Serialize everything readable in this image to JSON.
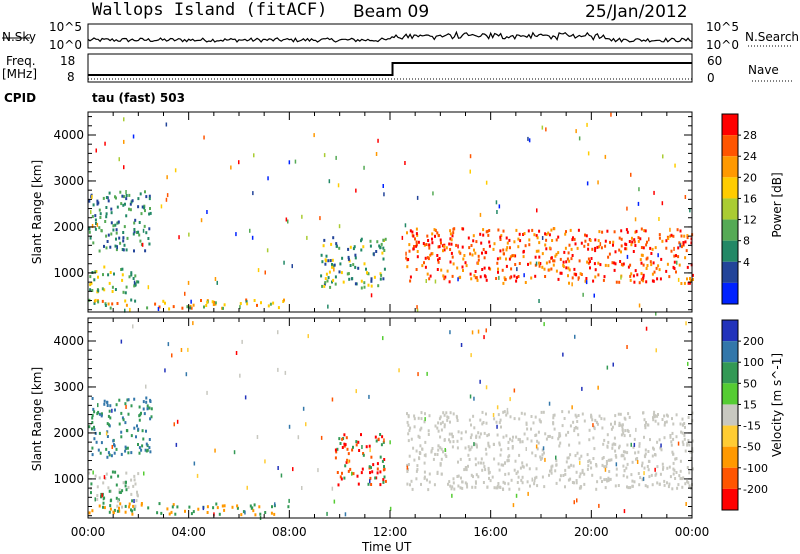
{
  "header": {
    "title": "Wallops Island (fitACF)",
    "beam": "Beam 09",
    "date": "25/Jan/2012"
  },
  "sky_panel": {
    "left_label": "N.Sky",
    "left_ticks": [
      "10^5",
      "10^0"
    ],
    "right_ticks": [
      "10^5",
      "10^0"
    ],
    "right_label": "N.Search"
  },
  "freq_panel": {
    "left_label_line1": "Freq.",
    "left_label_line2": "[MHz]",
    "left_ticks": [
      "18",
      "8"
    ],
    "right_ticks": [
      "60",
      "0"
    ],
    "right_label": "Nave",
    "cpid_label": "CPID",
    "cpid_value": "tau (fast) 503"
  },
  "chart_data": [
    {
      "type": "heatmap",
      "name": "Power",
      "xlabel": "",
      "ylabel": "Slant Range [km]",
      "x_ticks": [
        "00:00",
        "04:00",
        "08:00",
        "12:00",
        "16:00",
        "20:00",
        "00:00"
      ],
      "y_ticks": [
        "1000",
        "2000",
        "3000",
        "4000"
      ],
      "ylim": [
        150,
        4500
      ],
      "xlim_hours": [
        0,
        24
      ],
      "colorbar_label": "Power [dB]",
      "colorbar_ticks": [
        "28",
        "24",
        "20",
        "16",
        "12",
        "8",
        "4"
      ],
      "colors": [
        "#ff0000",
        "#ff5500",
        "#ff9900",
        "#ffcc00",
        "#aacc33",
        "#55aa55",
        "#228866",
        "#224499",
        "#0022ff"
      ],
      "echo_regions": [
        {
          "t0": 0.0,
          "t1": 2.5,
          "r0": 1500,
          "r1": 2800,
          "levels": [
            4,
            8,
            12
          ]
        },
        {
          "t0": 0.0,
          "t1": 2.0,
          "r0": 600,
          "r1": 1200,
          "levels": [
            8,
            12,
            16
          ]
        },
        {
          "t0": 0.0,
          "t1": 8.0,
          "r0": 250,
          "r1": 450,
          "levels": [
            8,
            12,
            16,
            20,
            24
          ]
        },
        {
          "t0": 9.2,
          "t1": 11.8,
          "r0": 700,
          "r1": 1800,
          "levels": [
            4,
            8,
            12,
            16
          ]
        },
        {
          "t0": 12.6,
          "t1": 24.0,
          "r0": 800,
          "r1": 2000,
          "levels": [
            20,
            24,
            28
          ]
        }
      ]
    },
    {
      "type": "heatmap",
      "name": "Velocity",
      "xlabel": "Time UT",
      "ylabel": "Slant Range [km]",
      "x_ticks": [
        "00:00",
        "04:00",
        "08:00",
        "12:00",
        "16:00",
        "20:00",
        "00:00"
      ],
      "y_ticks": [
        "1000",
        "2000",
        "3000",
        "4000"
      ],
      "ylim": [
        150,
        4500
      ],
      "xlim_hours": [
        0,
        24
      ],
      "colorbar_label": "Velocity [m s^-1]",
      "colorbar_ticks": [
        "200",
        "100",
        "50",
        "15",
        "-15",
        "-50",
        "-100",
        "-200"
      ],
      "colors": [
        "#2233bb",
        "#3377aa",
        "#339955",
        "#55cc33",
        "#c8c8c0",
        "#ffcc33",
        "#ff9900",
        "#ff5500",
        "#ff0000"
      ],
      "echo_regions": [
        {
          "t0": 0.0,
          "t1": 2.5,
          "r0": 1500,
          "r1": 2800,
          "levels": [
            50,
            100
          ]
        },
        {
          "t0": 0.0,
          "t1": 2.0,
          "r0": 400,
          "r1": 1200,
          "levels": [
            0,
            50
          ]
        },
        {
          "t0": 0.0,
          "t1": 8.0,
          "r0": 250,
          "r1": 500,
          "levels": [
            -50,
            50
          ]
        },
        {
          "t0": 9.8,
          "t1": 11.8,
          "r0": 900,
          "r1": 2000,
          "levels": [
            -100,
            -200,
            50
          ]
        },
        {
          "t0": 12.6,
          "t1": 24.0,
          "r0": 800,
          "r1": 2500,
          "levels": [
            0
          ]
        }
      ]
    }
  ]
}
